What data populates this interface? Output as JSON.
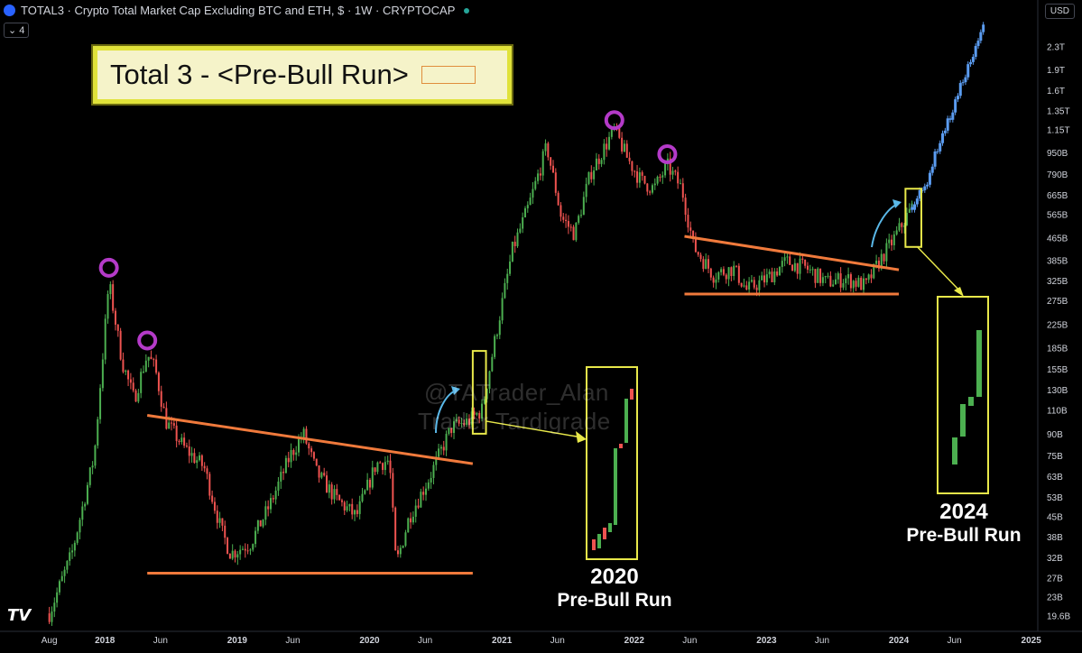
{
  "header": {
    "symbol_title": "TOTAL3 · Crypto Total Market Cap Excluding BTC and ETH, $ · 1W · CRYPTOCAP",
    "indicator_count": "4",
    "currency": "USD"
  },
  "annotation": {
    "title": "Total 3 - <Pre-Bull Run>",
    "stamp_text": "Trader Tardigrade @TATrader_Alan",
    "watermark_line1": "@TATrader_Alan",
    "watermark_line2": "Trader Tardigrade",
    "label_2020_year": "2020",
    "label_2020_text": "Pre-Bull Run",
    "label_2024_year": "2024",
    "label_2024_text": "Pre-Bull Run"
  },
  "colors": {
    "background": "#000000",
    "up_candle": "#4caf50",
    "down_candle": "#ef5350",
    "projection": "#5b9cf0",
    "trendline": "#f07a3c",
    "highlight_box": "#e8e84a",
    "peak_circle": "#b43ac8",
    "arrow": "#5ab8e8"
  },
  "chart_data": {
    "type": "candlestick",
    "title": "TOTAL3 · Crypto Total Market Cap Excluding BTC and ETH, $ · 1W · CRYPTOCAP",
    "y_scale": "log",
    "ylim": [
      18000000000,
      3200000000000
    ],
    "x_ticks": [
      {
        "label": "Aug",
        "date": 2017.58
      },
      {
        "label": "2018",
        "date": 2018.0
      },
      {
        "label": "Jun",
        "date": 2018.42
      },
      {
        "label": "2019",
        "date": 2019.0
      },
      {
        "label": "Jun",
        "date": 2019.42
      },
      {
        "label": "2020",
        "date": 2020.0
      },
      {
        "label": "Jun",
        "date": 2020.42
      },
      {
        "label": "2021",
        "date": 2021.0
      },
      {
        "label": "Jun",
        "date": 2021.42
      },
      {
        "label": "2022",
        "date": 2022.0
      },
      {
        "label": "Jun",
        "date": 2022.42
      },
      {
        "label": "2023",
        "date": 2023.0
      },
      {
        "label": "Jun",
        "date": 2023.42
      },
      {
        "label": "2024",
        "date": 2024.0
      },
      {
        "label": "Jun",
        "date": 2024.42
      },
      {
        "label": "2025",
        "date": 2025.0
      }
    ],
    "y_ticks": [
      {
        "label": "2.3T",
        "value": 2300000000000.0
      },
      {
        "label": "1.9T",
        "value": 1900000000000.0
      },
      {
        "label": "1.6T",
        "value": 1600000000000.0
      },
      {
        "label": "1.35T",
        "value": 1350000000000.0
      },
      {
        "label": "1.15T",
        "value": 1150000000000.0
      },
      {
        "label": "950B",
        "value": 950000000000.0
      },
      {
        "label": "790B",
        "value": 790000000000.0
      },
      {
        "label": "665B",
        "value": 665000000000.0
      },
      {
        "label": "565B",
        "value": 565000000000.0
      },
      {
        "label": "465B",
        "value": 465000000000.0
      },
      {
        "label": "385B",
        "value": 385000000000.0
      },
      {
        "label": "325B",
        "value": 325000000000.0
      },
      {
        "label": "275B",
        "value": 275000000000.0
      },
      {
        "label": "225B",
        "value": 225000000000.0
      },
      {
        "label": "185B",
        "value": 185000000000.0
      },
      {
        "label": "155B",
        "value": 155000000000.0
      },
      {
        "label": "130B",
        "value": 130000000000.0
      },
      {
        "label": "110B",
        "value": 110000000000.0
      },
      {
        "label": "90B",
        "value": 90000000000.0
      },
      {
        "label": "75B",
        "value": 75000000000.0
      },
      {
        "label": "63B",
        "value": 63000000000.0
      },
      {
        "label": "53B",
        "value": 53000000000.0
      },
      {
        "label": "45B",
        "value": 45000000000.0
      },
      {
        "label": "38B",
        "value": 38000000000.0
      },
      {
        "label": "32B",
        "value": 32000000000.0
      },
      {
        "label": "27B",
        "value": 27000000000.0
      },
      {
        "label": "23B",
        "value": 23000000000.0
      },
      {
        "label": "19.6B",
        "value": 19600000000.0
      }
    ],
    "price_path": [
      [
        2017.58,
        20000000000.0
      ],
      [
        2017.75,
        33000000000.0
      ],
      [
        2017.92,
        75000000000.0
      ],
      [
        2018.03,
        320000000000.0
      ],
      [
        2018.13,
        165000000000.0
      ],
      [
        2018.22,
        120000000000.0
      ],
      [
        2018.32,
        175000000000.0
      ],
      [
        2018.38,
        155000000000.0
      ],
      [
        2018.46,
        100000000000.0
      ],
      [
        2018.6,
        80000000000.0
      ],
      [
        2018.75,
        68000000000.0
      ],
      [
        2018.88,
        40000000000.0
      ],
      [
        2018.95,
        33000000000.0
      ],
      [
        2019.1,
        36000000000.0
      ],
      [
        2019.25,
        50000000000.0
      ],
      [
        2019.4,
        75000000000.0
      ],
      [
        2019.5,
        90000000000.0
      ],
      [
        2019.6,
        65000000000.0
      ],
      [
        2019.75,
        52000000000.0
      ],
      [
        2019.9,
        45000000000.0
      ],
      [
        2020.05,
        70000000000.0
      ],
      [
        2020.15,
        72000000000.0
      ],
      [
        2020.2,
        30000000000.0
      ],
      [
        2020.3,
        45000000000.0
      ],
      [
        2020.45,
        62000000000.0
      ],
      [
        2020.55,
        80000000000.0
      ],
      [
        2020.62,
        95000000000.0
      ],
      [
        2020.75,
        100000000000.0
      ],
      [
        2020.85,
        110000000000.0
      ],
      [
        2020.95,
        200000000000.0
      ],
      [
        2021.08,
        420000000000.0
      ],
      [
        2021.2,
        600000000000.0
      ],
      [
        2021.34,
        1000000000000.0
      ],
      [
        2021.45,
        550000000000.0
      ],
      [
        2021.55,
        480000000000.0
      ],
      [
        2021.67,
        800000000000.0
      ],
      [
        2021.85,
        1150000000000.0
      ],
      [
        2021.95,
        900000000000.0
      ],
      [
        2022.05,
        750000000000.0
      ],
      [
        2022.15,
        700000000000.0
      ],
      [
        2022.25,
        850000000000.0
      ],
      [
        2022.36,
        700000000000.0
      ],
      [
        2022.45,
        430000000000.0
      ],
      [
        2022.6,
        340000000000.0
      ],
      [
        2022.75,
        360000000000.0
      ],
      [
        2022.85,
        300000000000.0
      ],
      [
        2023.0,
        330000000000.0
      ],
      [
        2023.15,
        380000000000.0
      ],
      [
        2023.3,
        360000000000.0
      ],
      [
        2023.45,
        320000000000.0
      ],
      [
        2023.6,
        330000000000.0
      ],
      [
        2023.75,
        310000000000.0
      ],
      [
        2023.85,
        380000000000.0
      ],
      [
        2023.95,
        450000000000.0
      ],
      [
        2024.1,
        600000000000.0
      ]
    ],
    "projection_path": [
      [
        2024.1,
        600000000000.0
      ],
      [
        2024.2,
        700000000000.0
      ],
      [
        2024.3,
        1000000000000.0
      ],
      [
        2024.4,
        1300000000000.0
      ],
      [
        2024.5,
        1800000000000.0
      ],
      [
        2024.58,
        2200000000000.0
      ],
      [
        2024.64,
        2700000000000.0
      ]
    ],
    "peaks": [
      {
        "date": 2018.03,
        "value": 340000000000.0
      },
      {
        "date": 2018.32,
        "value": 185000000000.0
      },
      {
        "date": 2021.85,
        "value": 1170000000000.0
      },
      {
        "date": 2022.25,
        "value": 880000000000.0
      }
    ],
    "trendlines": [
      {
        "name": "2019 resistance",
        "from": [
          2018.32,
          105000000000.0
        ],
        "to": [
          2020.78,
          70000000000.0
        ]
      },
      {
        "name": "2019 support",
        "from": [
          2018.32,
          28000000000.0
        ],
        "to": [
          2020.78,
          28000000000.0
        ]
      },
      {
        "name": "2023 resistance",
        "from": [
          2022.38,
          470000000000.0
        ],
        "to": [
          2024.0,
          355000000000.0
        ]
      },
      {
        "name": "2023 support",
        "from": [
          2022.38,
          290000000000.0
        ],
        "to": [
          2024.0,
          290000000000.0
        ]
      }
    ]
  }
}
